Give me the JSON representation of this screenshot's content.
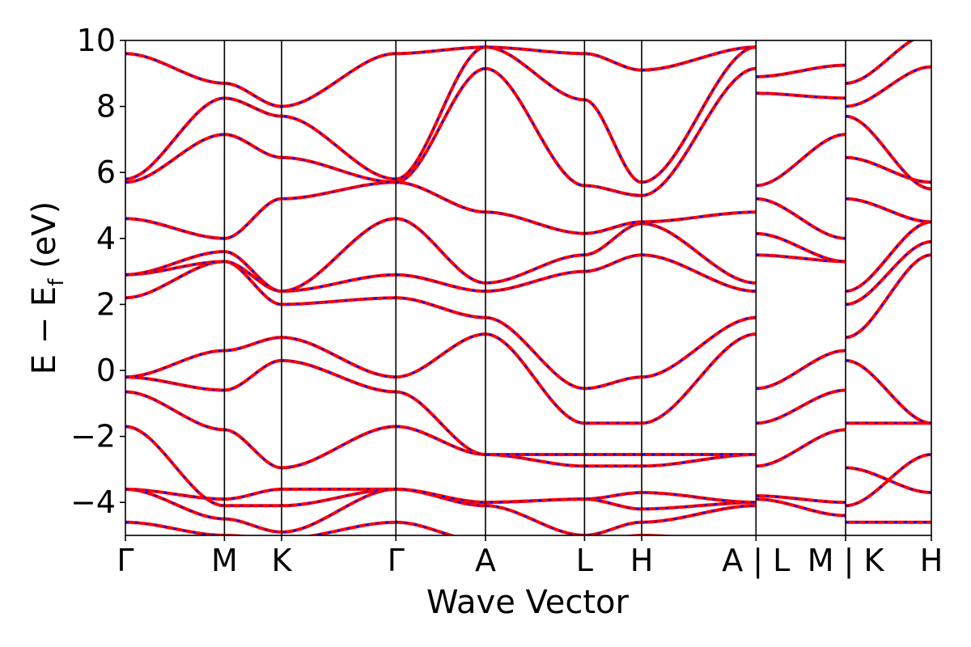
{
  "chart_data": {
    "type": "line",
    "xlabel": "Wave Vector",
    "ylabel": "E − E_f (eV)",
    "ylabel_parts": {
      "pre": "E − E",
      "sub": "f",
      "post": " (eV)"
    },
    "ylim": [
      -5,
      10
    ],
    "grid": false,
    "legend": "none",
    "series_colors": {
      "primary": "#ff0000",
      "overlay_dashed": "#0000ff"
    },
    "kpath_labels": [
      "Γ",
      "M",
      "K",
      "Γ",
      "A",
      "L",
      "H",
      "A | L",
      "M | K",
      "H"
    ],
    "kpath_positions": [
      0,
      0.5774,
      0.9107,
      1.5774,
      2.1,
      2.6774,
      3.0107,
      3.6774,
      4.2,
      4.7
    ],
    "break_after_labels": [
      "A | L",
      "M | K"
    ],
    "yticks": [
      {
        "value": 10,
        "label": "10"
      },
      {
        "value": 8,
        "label": "8"
      },
      {
        "value": 6,
        "label": "6"
      },
      {
        "value": 4,
        "label": "4"
      },
      {
        "value": 2,
        "label": "2"
      },
      {
        "value": 0,
        "label": "0"
      },
      {
        "value": -2,
        "label": "−2"
      },
      {
        "value": -4,
        "label": "−4"
      }
    ],
    "segments": [
      {
        "name": "Γ-M-K-Γ-A-L-H-A",
        "x": [
          0,
          0.5774,
          0.9107,
          1.5774,
          2.1,
          2.6774,
          3.0107,
          3.6774
        ],
        "bands": [
          [
            -4.6,
            -5.0,
            -5.1,
            -4.6,
            -5.2,
            -5.2,
            -5.0,
            -5.2
          ],
          [
            -3.6,
            -4.5,
            -4.9,
            -3.6,
            -4.1,
            -5.0,
            -4.6,
            -4.1
          ],
          [
            -3.6,
            -3.9,
            -3.6,
            -3.6,
            -4.0,
            -3.9,
            -4.2,
            -4.0
          ],
          [
            -1.7,
            -4.1,
            -4.1,
            -3.6,
            -4.0,
            -3.9,
            -3.7,
            -4.0
          ],
          [
            -0.65,
            -1.8,
            -2.95,
            -1.7,
            -2.55,
            -2.9,
            -2.9,
            -2.55
          ],
          [
            -0.2,
            -0.6,
            0.3,
            -0.65,
            -2.55,
            -2.55,
            -2.55,
            -2.55
          ],
          [
            -0.2,
            0.6,
            1.0,
            -0.2,
            1.1,
            -1.6,
            -1.6,
            1.1
          ],
          [
            2.2,
            3.3,
            2.0,
            2.2,
            1.6,
            -0.55,
            -0.2,
            1.6
          ],
          [
            2.9,
            3.3,
            2.4,
            2.9,
            2.4,
            3.0,
            3.5,
            2.4
          ],
          [
            2.9,
            3.6,
            2.4,
            4.6,
            2.65,
            3.5,
            4.45,
            2.65
          ],
          [
            4.6,
            4.0,
            5.2,
            5.7,
            4.8,
            4.15,
            4.5,
            4.8
          ],
          [
            5.7,
            7.15,
            6.45,
            5.7,
            9.15,
            5.6,
            5.3,
            9.15
          ],
          [
            5.8,
            8.25,
            7.7,
            5.8,
            9.8,
            8.2,
            5.7,
            9.8
          ],
          [
            9.6,
            8.7,
            8.0,
            9.6,
            9.8,
            9.6,
            9.1,
            9.8
          ]
        ]
      },
      {
        "name": "L-M",
        "x": [
          3.6774,
          4.2
        ],
        "bands": [
          [
            -3.8,
            -4.0
          ],
          [
            -3.9,
            -4.4
          ],
          [
            -2.9,
            -1.8
          ],
          [
            -1.6,
            -0.6
          ],
          [
            -0.55,
            0.6
          ],
          [
            3.5,
            3.3
          ],
          [
            4.15,
            3.3
          ],
          [
            5.2,
            4.0
          ],
          [
            5.6,
            7.15
          ],
          [
            8.4,
            8.25
          ],
          [
            8.9,
            9.25
          ]
        ]
      },
      {
        "name": "K-H",
        "x": [
          4.2,
          4.7
        ],
        "bands": [
          [
            -4.6,
            -4.6
          ],
          [
            -4.1,
            -2.55
          ],
          [
            -2.95,
            -3.7
          ],
          [
            -1.6,
            -1.6
          ],
          [
            0.3,
            -1.6
          ],
          [
            1.0,
            3.5
          ],
          [
            2.0,
            3.9
          ],
          [
            2.4,
            4.5
          ],
          [
            5.2,
            4.5
          ],
          [
            6.45,
            5.7
          ],
          [
            7.7,
            5.5
          ],
          [
            8.0,
            9.2
          ],
          [
            8.7,
            10.2
          ]
        ]
      }
    ]
  }
}
